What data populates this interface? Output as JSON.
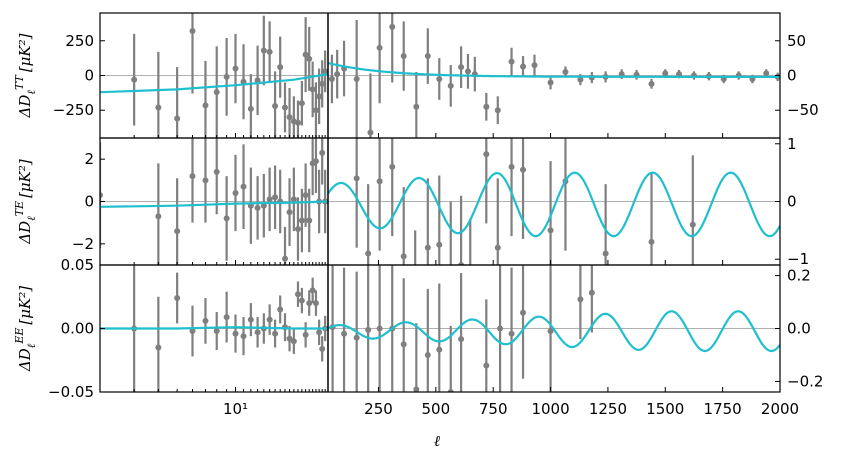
{
  "chart_data": {
    "type": "scatter",
    "xlabel": "ℓ",
    "split_at": 30,
    "low_x_range": [
      2,
      30
    ],
    "low_x_scale": "log",
    "high_x_range": [
      30,
      2000
    ],
    "high_x_ticks": [
      250,
      500,
      750,
      1000,
      1250,
      1500,
      1750,
      2000
    ],
    "low_x_ticks": [
      10
    ],
    "low_x_tick_labels": [
      "10¹"
    ],
    "colors": {
      "points": "#7f7f7f",
      "model": "#1fbfcf",
      "zero_line": "#b0b0b0"
    },
    "panels": [
      {
        "name": "TT",
        "ylabel_main": "ΔD",
        "ylabel_sub": "ℓ",
        "ylabel_sup": "TT",
        "ylabel_units": "[μK²]",
        "left_ylim": [
          -450,
          450
        ],
        "left_yticks": [
          -250,
          0,
          250
        ],
        "left_ytick_labels": [
          "−250",
          "0",
          "250"
        ],
        "right_ylim": [
          -90,
          90
        ],
        "right_yticks": [
          -50,
          0,
          50
        ],
        "right_ytick_labels": [
          "−50",
          "0",
          "50"
        ],
        "low_points": [
          {
            "x": 3,
            "y": -30,
            "err": 330
          },
          {
            "x": 4,
            "y": -230,
            "err": 400
          },
          {
            "x": 5,
            "y": -310,
            "err": 370
          },
          {
            "x": 6,
            "y": 320,
            "err": 450
          },
          {
            "x": 7,
            "y": -215,
            "err": 320
          },
          {
            "x": 8,
            "y": -120,
            "err": 330
          },
          {
            "x": 9,
            "y": -10,
            "err": 280
          },
          {
            "x": 10,
            "y": 50,
            "err": 250
          },
          {
            "x": 11,
            "y": -45,
            "err": 270
          },
          {
            "x": 12,
            "y": -240,
            "err": 250
          },
          {
            "x": 13,
            "y": -35,
            "err": 250
          },
          {
            "x": 14,
            "y": 180,
            "err": 250
          },
          {
            "x": 15,
            "y": 170,
            "err": 220
          },
          {
            "x": 16,
            "y": -220,
            "err": 250
          },
          {
            "x": 17,
            "y": 60,
            "err": 220
          },
          {
            "x": 18,
            "y": -230,
            "err": 180
          },
          {
            "x": 19,
            "y": -300,
            "err": 210
          },
          {
            "x": 20,
            "y": -330,
            "err": 180
          },
          {
            "x": 21,
            "y": -340,
            "err": 160
          },
          {
            "x": 22,
            "y": -200,
            "err": 160
          },
          {
            "x": 23,
            "y": 150,
            "err": 270
          },
          {
            "x": 24,
            "y": 120,
            "err": 230
          },
          {
            "x": 25,
            "y": -100,
            "err": 200
          },
          {
            "x": 26,
            "y": -250,
            "err": 200
          },
          {
            "x": 27,
            "y": -150,
            "err": 200
          },
          {
            "x": 28,
            "y": -60,
            "err": 170
          },
          {
            "x": 29,
            "y": 30,
            "err": 150
          }
        ],
        "high_points": [
          {
            "x": 47,
            "y": -5,
            "err": 35
          },
          {
            "x": 70,
            "y": 2,
            "err": 35
          },
          {
            "x": 100,
            "y": 10,
            "err": 40
          },
          {
            "x": 155,
            "y": -5,
            "err": 85
          },
          {
            "x": 215,
            "y": -82,
            "err": 85
          },
          {
            "x": 255,
            "y": 40,
            "err": 80
          },
          {
            "x": 310,
            "y": 70,
            "err": 80
          },
          {
            "x": 360,
            "y": 28,
            "err": 50
          },
          {
            "x": 415,
            "y": -45,
            "err": 50
          },
          {
            "x": 465,
            "y": 28,
            "err": 40
          },
          {
            "x": 515,
            "y": -5,
            "err": 30
          },
          {
            "x": 565,
            "y": -15,
            "err": 30
          },
          {
            "x": 610,
            "y": 12,
            "err": 30
          },
          {
            "x": 640,
            "y": 6,
            "err": 25
          },
          {
            "x": 670,
            "y": 2,
            "err": 25
          },
          {
            "x": 720,
            "y": -45,
            "err": 20
          },
          {
            "x": 770,
            "y": -50,
            "err": 20
          },
          {
            "x": 830,
            "y": 20,
            "err": 20
          },
          {
            "x": 880,
            "y": 13,
            "err": 15
          },
          {
            "x": 930,
            "y": 15,
            "err": 15
          },
          {
            "x": 1000,
            "y": -10,
            "err": 10
          },
          {
            "x": 1065,
            "y": 5,
            "err": 8
          },
          {
            "x": 1130,
            "y": -6,
            "err": 8
          },
          {
            "x": 1180,
            "y": -3,
            "err": 8
          },
          {
            "x": 1240,
            "y": -2,
            "err": 8
          },
          {
            "x": 1310,
            "y": 2,
            "err": 7
          },
          {
            "x": 1375,
            "y": 1,
            "err": 7
          },
          {
            "x": 1440,
            "y": -12,
            "err": 7
          },
          {
            "x": 1500,
            "y": 3,
            "err": 6
          },
          {
            "x": 1560,
            "y": 2,
            "err": 6
          },
          {
            "x": 1625,
            "y": 0,
            "err": 6
          },
          {
            "x": 1690,
            "y": -1,
            "err": 6
          },
          {
            "x": 1755,
            "y": -5,
            "err": 6
          },
          {
            "x": 1820,
            "y": 0,
            "err": 6
          },
          {
            "x": 1880,
            "y": -5,
            "err": 6
          },
          {
            "x": 1940,
            "y": 3,
            "err": 6
          },
          {
            "x": 1990,
            "y": -2,
            "err": 6
          }
        ],
        "model_low": {
          "x": [
            2,
            5,
            10,
            20,
            30
          ],
          "y": [
            -120,
            -100,
            -70,
            -30,
            10
          ]
        },
        "model_high": {
          "type": "tt_decay"
        }
      },
      {
        "name": "TE",
        "ylabel_main": "ΔD",
        "ylabel_sub": "ℓ",
        "ylabel_sup": "TE",
        "ylabel_units": "[μK²]",
        "left_ylim": [
          -3,
          3
        ],
        "left_yticks": [
          -2,
          0,
          2
        ],
        "left_ytick_labels": [
          "−2",
          "0",
          "2"
        ],
        "right_ylim": [
          -1.1,
          1.1
        ],
        "right_yticks": [
          -1,
          0,
          1
        ],
        "right_ytick_labels": [
          "−1",
          "0",
          "1"
        ],
        "low_points": [
          {
            "x": 2,
            "y": 0.3,
            "err": 2.5
          },
          {
            "x": 4,
            "y": -0.7,
            "err": 2.5
          },
          {
            "x": 5,
            "y": -1.4,
            "err": 2.5
          },
          {
            "x": 6,
            "y": 1.2,
            "err": 2.2
          },
          {
            "x": 7,
            "y": 1.0,
            "err": 2.0
          },
          {
            "x": 8,
            "y": 1.4,
            "err": 2.0
          },
          {
            "x": 9,
            "y": -0.8,
            "err": 2.0
          },
          {
            "x": 10,
            "y": 0.4,
            "err": 1.8
          },
          {
            "x": 11,
            "y": 0.7,
            "err": 2.0
          },
          {
            "x": 12,
            "y": -0.2,
            "err": 1.8
          },
          {
            "x": 13,
            "y": -0.3,
            "err": 1.5
          },
          {
            "x": 14,
            "y": -0.2,
            "err": 1.5
          },
          {
            "x": 15,
            "y": 0.1,
            "err": 1.5
          },
          {
            "x": 16,
            "y": 0.2,
            "err": 1.5
          },
          {
            "x": 17,
            "y": 0.0,
            "err": 1.5
          },
          {
            "x": 18,
            "y": -2.7,
            "err": 1.5
          },
          {
            "x": 19,
            "y": -0.5,
            "err": 1.6
          },
          {
            "x": 20,
            "y": 0.1,
            "err": 1.5
          },
          {
            "x": 21,
            "y": -1.3,
            "err": 1.5
          },
          {
            "x": 22,
            "y": -0.9,
            "err": 1.5
          },
          {
            "x": 23,
            "y": 0.3,
            "err": 1.5
          },
          {
            "x": 24,
            "y": -0.9,
            "err": 1.5
          },
          {
            "x": 25,
            "y": 1.8,
            "err": 1.5
          },
          {
            "x": 26,
            "y": 1.9,
            "err": 1.5
          },
          {
            "x": 27,
            "y": 0.0,
            "err": 1.5
          },
          {
            "x": 28,
            "y": 2.3,
            "err": 1.5
          },
          {
            "x": 29,
            "y": 0.0,
            "err": 1.5
          }
        ],
        "high_points": [
          {
            "x": 155,
            "y": 0.4,
            "err": 1.2
          },
          {
            "x": 205,
            "y": -0.9,
            "err": 1.2
          },
          {
            "x": 255,
            "y": 0.35,
            "err": 1.2
          },
          {
            "x": 310,
            "y": 0.6,
            "err": 1.2
          },
          {
            "x": 360,
            "y": -0.95,
            "err": 1.2
          },
          {
            "x": 410,
            "y": -1.7,
            "err": 1.2
          },
          {
            "x": 465,
            "y": -0.8,
            "err": 1.2
          },
          {
            "x": 515,
            "y": -0.75,
            "err": 1.2
          },
          {
            "x": 565,
            "y": -1.2,
            "err": 1.2
          },
          {
            "x": 610,
            "y": -1.1,
            "err": 1.2
          },
          {
            "x": 650,
            "y": -1.5,
            "err": 1.2
          },
          {
            "x": 720,
            "y": 0.82,
            "err": 1.2
          },
          {
            "x": 770,
            "y": -0.8,
            "err": 1.2
          },
          {
            "x": 830,
            "y": 0.6,
            "err": 1.2
          },
          {
            "x": 880,
            "y": 0.55,
            "err": 1.2
          },
          {
            "x": 1000,
            "y": -0.5,
            "err": 1.2
          },
          {
            "x": 1065,
            "y": 0.35,
            "err": 1.2
          },
          {
            "x": 1240,
            "y": -0.9,
            "err": 1.2
          },
          {
            "x": 1440,
            "y": -0.7,
            "err": 1.2
          },
          {
            "x": 1620,
            "y": -0.4,
            "err": 1.2
          }
        ],
        "model_low": {
          "x": [
            2,
            5,
            10,
            20,
            30
          ],
          "y": [
            -0.25,
            -0.2,
            -0.1,
            -0.05,
            0.0
          ]
        },
        "model_high": {
          "type": "te_osc"
        }
      },
      {
        "name": "EE",
        "ylabel_main": "ΔD",
        "ylabel_sub": "ℓ",
        "ylabel_sup": "EE",
        "ylabel_units": "[μK²]",
        "left_ylim": [
          -0.05,
          0.05
        ],
        "left_yticks": [
          -0.05,
          0.0,
          0.05
        ],
        "left_ytick_labels": [
          "−0.05",
          "0.00",
          "0.05"
        ],
        "right_ylim": [
          -0.24,
          0.24
        ],
        "right_yticks": [
          -0.2,
          0.0,
          0.2
        ],
        "right_ytick_labels": [
          "−0.2",
          "0.0",
          "0.2"
        ],
        "low_points": [
          {
            "x": 3,
            "y": 0.0,
            "err": 0.05
          },
          {
            "x": 4,
            "y": -0.015,
            "err": 0.04
          },
          {
            "x": 5,
            "y": 0.024,
            "err": 0.02
          },
          {
            "x": 6,
            "y": -0.002,
            "err": 0.02
          },
          {
            "x": 7,
            "y": 0.006,
            "err": 0.018
          },
          {
            "x": 8,
            "y": -0.002,
            "err": 0.015
          },
          {
            "x": 9,
            "y": 0.009,
            "err": 0.02
          },
          {
            "x": 10,
            "y": -0.004,
            "err": 0.015
          },
          {
            "x": 11,
            "y": -0.006,
            "err": 0.015
          },
          {
            "x": 12,
            "y": 0.007,
            "err": 0.013
          },
          {
            "x": 13,
            "y": -0.003,
            "err": 0.012
          },
          {
            "x": 14,
            "y": 0.0,
            "err": 0.012
          },
          {
            "x": 15,
            "y": 0.007,
            "err": 0.012
          },
          {
            "x": 16,
            "y": -0.004,
            "err": 0.011
          },
          {
            "x": 17,
            "y": 0.015,
            "err": 0.011
          },
          {
            "x": 18,
            "y": 0.001,
            "err": 0.011
          },
          {
            "x": 19,
            "y": -0.008,
            "err": 0.01
          },
          {
            "x": 20,
            "y": -0.01,
            "err": 0.01
          },
          {
            "x": 21,
            "y": 0.027,
            "err": 0.01
          },
          {
            "x": 22,
            "y": 0.022,
            "err": 0.01
          },
          {
            "x": 23,
            "y": -0.005,
            "err": 0.01
          },
          {
            "x": 24,
            "y": 0.02,
            "err": 0.01
          },
          {
            "x": 25,
            "y": 0.03,
            "err": 0.01
          },
          {
            "x": 26,
            "y": 0.02,
            "err": 0.01
          },
          {
            "x": 27,
            "y": -0.003,
            "err": 0.01
          },
          {
            "x": 28,
            "y": -0.016,
            "err": 0.01
          },
          {
            "x": 29,
            "y": 0.0,
            "err": 0.01
          }
        ],
        "high_points": [
          {
            "x": 50,
            "y": 0.005,
            "err": 0.25
          },
          {
            "x": 100,
            "y": -0.02,
            "err": 0.25
          },
          {
            "x": 155,
            "y": -0.035,
            "err": 0.25
          },
          {
            "x": 205,
            "y": -0.005,
            "err": 0.25
          },
          {
            "x": 255,
            "y": 0.0,
            "err": 0.25
          },
          {
            "x": 310,
            "y": 0.0,
            "err": 0.25
          },
          {
            "x": 360,
            "y": -0.06,
            "err": 0.25
          },
          {
            "x": 415,
            "y": -0.23,
            "err": 0.25
          },
          {
            "x": 465,
            "y": -0.1,
            "err": 0.25
          },
          {
            "x": 515,
            "y": -0.08,
            "err": 0.25
          },
          {
            "x": 565,
            "y": -0.24,
            "err": 0.25
          },
          {
            "x": 610,
            "y": -0.04,
            "err": 0.25
          },
          {
            "x": 720,
            "y": -0.14,
            "err": 0.25
          },
          {
            "x": 780,
            "y": 0.0,
            "err": 0.25
          },
          {
            "x": 830,
            "y": -0.02,
            "err": 0.25
          },
          {
            "x": 880,
            "y": 0.06,
            "err": 0.25
          },
          {
            "x": 1000,
            "y": -0.01,
            "err": 0.25
          },
          {
            "x": 1130,
            "y": 0.11,
            "err": 0.15
          },
          {
            "x": 1180,
            "y": 0.135,
            "err": 0.15
          }
        ],
        "model_low": {
          "x": [
            2,
            5,
            10,
            20,
            30
          ],
          "y": [
            0.0,
            0.0,
            0.001,
            0.0,
            0.0
          ]
        },
        "model_high": {
          "type": "ee_osc"
        }
      }
    ]
  }
}
